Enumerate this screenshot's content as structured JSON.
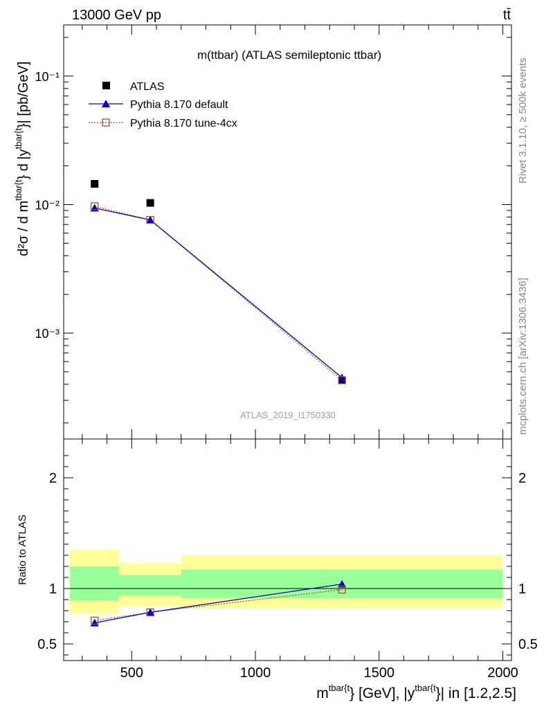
{
  "header": {
    "energy_label": "13000 GeV pp",
    "process_label": "tt̄"
  },
  "side_labels": {
    "rivet": "Rivet 3.1.10, ≥ 500k events",
    "source": "mcplots.cern.ch [arXiv:1306.3436]"
  },
  "watermark": "ATLAS_2019_I1750330",
  "chart_data": [
    {
      "type": "line",
      "panel": "main",
      "title": "m(ttbar) (ATLAS semileptonic ttbar)",
      "y_scale": "log",
      "ylim": [
        0.00015,
        0.25
      ],
      "xlim": [
        225,
        2035
      ],
      "ylabel": {
        "prefix": "d²σ /  d m",
        "sup1": "tbar{t",
        "mid": "} d |y",
        "sup2": "tbar{t",
        "suffix": "}| [pb/GeV]"
      },
      "y_tick_labels": [
        {
          "value": 0.001,
          "label": "10⁻³"
        },
        {
          "value": 0.01,
          "label": "10⁻²"
        },
        {
          "value": 0.1,
          "label": "10⁻¹"
        }
      ],
      "legend": {
        "position": "top-left",
        "entries": [
          {
            "name": "ATLAS",
            "marker": "square-filled",
            "color": "#000000"
          },
          {
            "name": "Pythia 8.170 default",
            "marker": "triangle",
            "color": "#0000cc"
          },
          {
            "name": "Pythia 8.170 tune-4cx",
            "marker": "square-open",
            "color": "#b84a1c"
          }
        ]
      },
      "series": [
        {
          "name": "ATLAS",
          "x": [
            350,
            575,
            1350
          ],
          "values": [
            0.0145,
            0.0103,
            0.00043
          ]
        },
        {
          "name": "Pythia 8.170 default",
          "x": [
            350,
            575,
            1350
          ],
          "values": [
            0.0094,
            0.0076,
            0.00045
          ]
        },
        {
          "name": "Pythia 8.170 tune-4cx",
          "x": [
            350,
            575,
            1350
          ],
          "values": [
            0.0097,
            0.0076,
            0.00043
          ]
        }
      ]
    },
    {
      "type": "line",
      "panel": "ratio",
      "ylabel": "Ratio to ATLAS",
      "ylim": [
        0.35,
        2.35
      ],
      "xlim": [
        225,
        2035
      ],
      "xlabel": {
        "prefix": "m",
        "sup1": "tbar{t",
        "mid": "} [GeV], |y",
        "sup2": "tbar{t",
        "suffix": "}| in [1.2,2.5]"
      },
      "x_tick_labels": [
        {
          "value": 500,
          "label": "500"
        },
        {
          "value": 1000,
          "label": "1000"
        },
        {
          "value": 1500,
          "label": "1500"
        },
        {
          "value": 2000,
          "label": "2000"
        }
      ],
      "y_tick_labels": [
        {
          "value": 0.5,
          "label": "0.5"
        },
        {
          "value": 1,
          "label": "1"
        },
        {
          "value": 2,
          "label": "2"
        }
      ],
      "uncertainty_bands": [
        {
          "x_range": [
            250,
            450
          ],
          "yellow": [
            0.77,
            1.35
          ],
          "green": [
            0.89,
            1.2
          ]
        },
        {
          "x_range": [
            450,
            700
          ],
          "yellow": [
            0.84,
            1.23
          ],
          "green": [
            0.935,
            1.12
          ]
        },
        {
          "x_range": [
            700,
            2000
          ],
          "yellow": [
            0.82,
            1.3
          ],
          "green": [
            0.91,
            1.17
          ]
        }
      ],
      "series": [
        {
          "name": "Pythia 8.170 default",
          "x": [
            350,
            575,
            1350
          ],
          "values": [
            0.69,
            0.785,
            1.04
          ]
        },
        {
          "name": "Pythia 8.170 tune-4cx",
          "x": [
            350,
            575,
            1350
          ],
          "values": [
            0.71,
            0.785,
            0.99
          ]
        }
      ],
      "colors": {
        "yellow_band": "#ffff99",
        "green_band": "#99ff99"
      }
    }
  ]
}
